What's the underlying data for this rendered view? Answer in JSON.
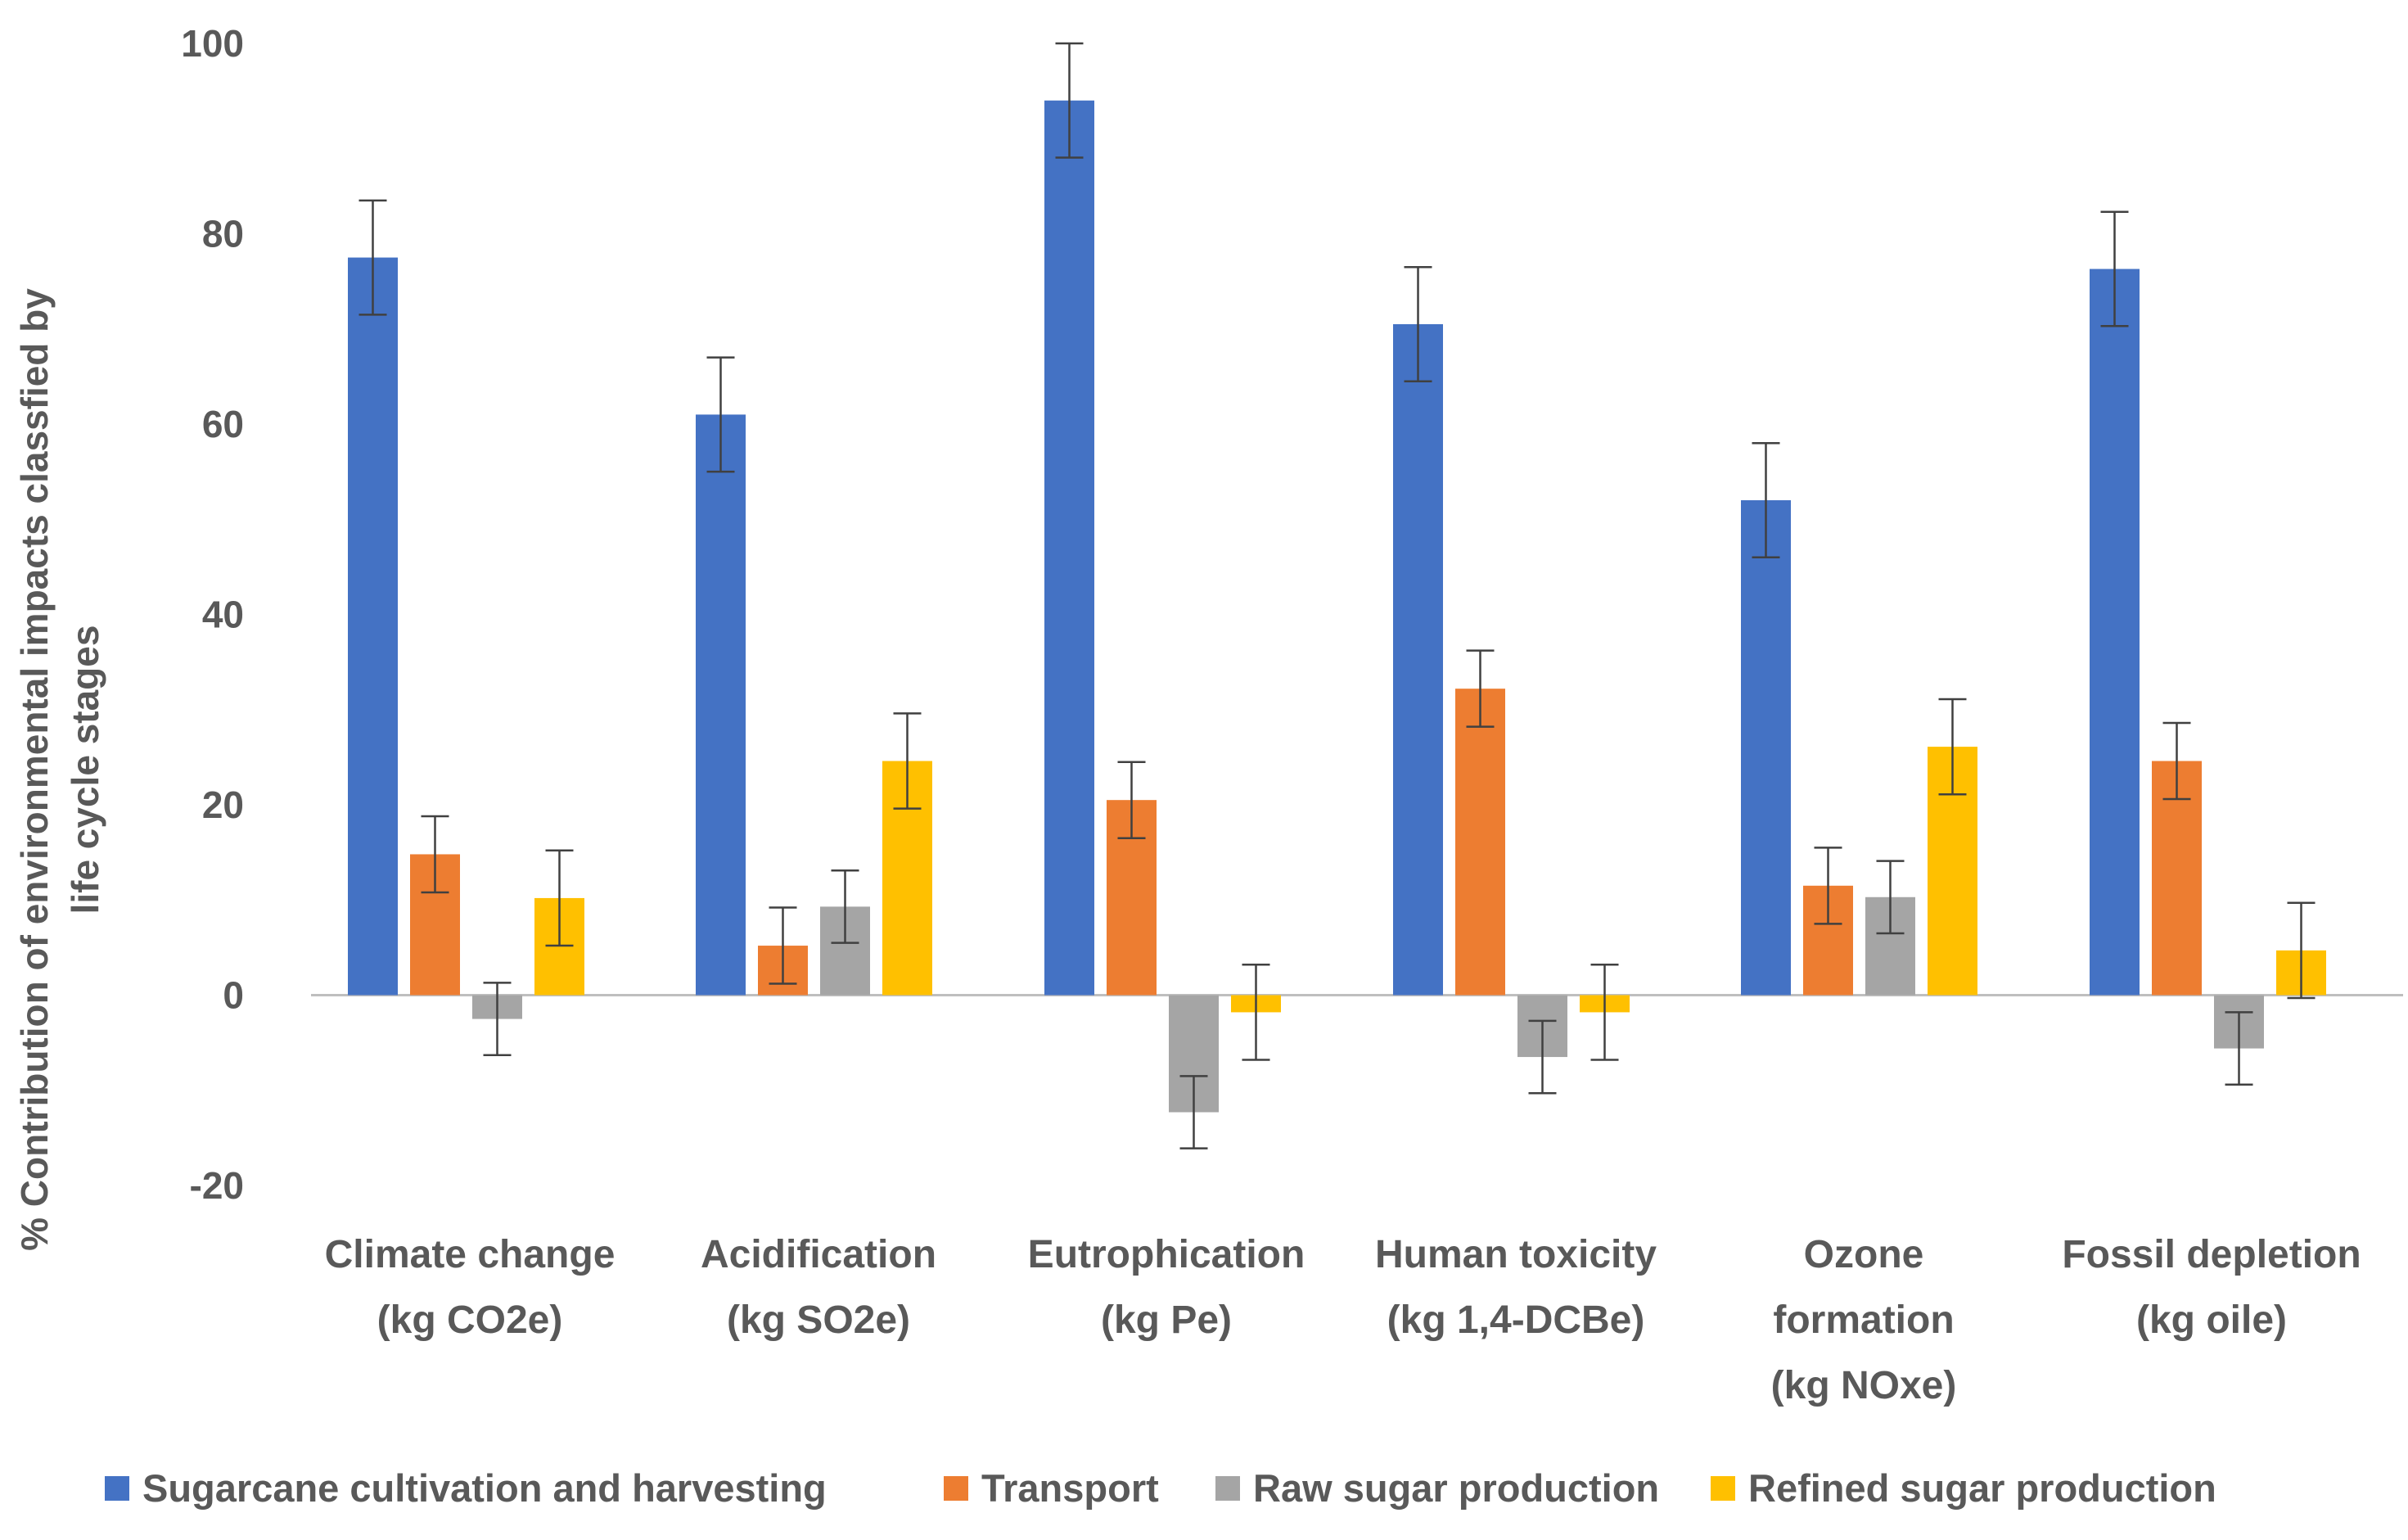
{
  "chart_data": {
    "type": "bar",
    "title": "",
    "xlabel": "",
    "ylabel_lines": [
      "% Contribution of environmental impacts classfied by",
      "life cycle stages"
    ],
    "ylim": [
      -20,
      100
    ],
    "yticks": [
      -20,
      0,
      20,
      40,
      60,
      80,
      100
    ],
    "categories": [
      [
        "Climate change",
        "(kg CO2e)"
      ],
      [
        "Acidification",
        "(kg SO2e)"
      ],
      [
        "Eutrophication",
        "(kg Pe)"
      ],
      [
        "Human toxicity",
        "(kg 1,4-DCBe)"
      ],
      [
        "Ozone",
        "formation",
        "(kg NOxe)"
      ],
      [
        "Fossil depletion",
        "(kg oile)"
      ]
    ],
    "series": [
      {
        "name": "Sugarcane cultivation and harvesting",
        "color": "#4472C4",
        "values": [
          77.5,
          61,
          94,
          70.5,
          52,
          76.3
        ],
        "error": [
          6,
          6,
          6,
          6,
          6,
          6
        ]
      },
      {
        "name": "Transport",
        "color": "#ED7D31",
        "values": [
          14.8,
          5.2,
          20.5,
          32.2,
          11.5,
          24.6
        ],
        "error": [
          4,
          4,
          4,
          4,
          4,
          4
        ]
      },
      {
        "name": "Raw sugar production",
        "color": "#A5A5A5",
        "values": [
          -2.5,
          9.3,
          -12.3,
          -6.5,
          10.3,
          -5.6
        ],
        "error": [
          3.8,
          3.8,
          3.8,
          3.8,
          3.8,
          3.8
        ]
      },
      {
        "name": "Refined sugar production",
        "color": "#FFC000",
        "values": [
          10.2,
          24.6,
          -1.8,
          -1.8,
          26.1,
          4.7
        ],
        "error": [
          5,
          5,
          5,
          5,
          5,
          5
        ]
      }
    ]
  }
}
